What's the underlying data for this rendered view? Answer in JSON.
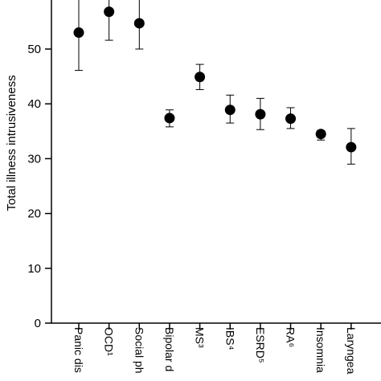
{
  "chart_data": {
    "type": "scatter",
    "ylabel": "Total illness intrusiveness",
    "xlabel": "",
    "title": "",
    "ylim": [
      0,
      60
    ],
    "yticks": [
      0,
      10,
      20,
      30,
      40,
      50
    ],
    "grid": false,
    "categories": [
      "Panic dis",
      "OCD¹",
      "Social ph",
      "Bipolar d",
      "MS³",
      "IBS⁴",
      "ESRD⁵",
      "RA⁶",
      "Insomnia",
      "Laryngea"
    ],
    "values": [
      53.0,
      56.8,
      54.7,
      37.4,
      44.9,
      38.9,
      38.1,
      37.3,
      34.5,
      32.1
    ],
    "error_low": [
      46.1,
      51.6,
      50.0,
      35.8,
      42.6,
      36.5,
      35.3,
      35.5,
      33.4,
      29.0
    ],
    "error_high": [
      61.0,
      61.0,
      59.5,
      38.9,
      47.2,
      41.6,
      41.0,
      39.3,
      35.1,
      35.5
    ]
  }
}
